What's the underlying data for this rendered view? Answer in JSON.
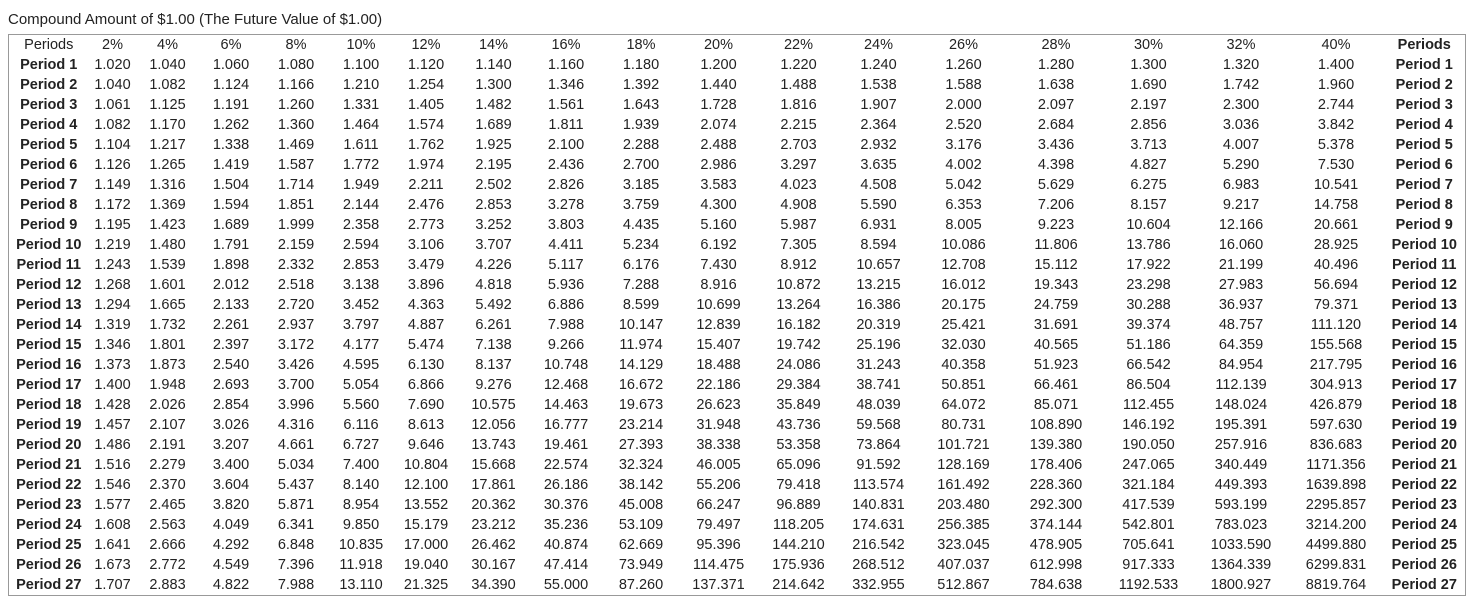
{
  "title": "Compound Amount of $1.00 (The Future Value of $1.00)",
  "table": {
    "header": [
      "Periods",
      "2%",
      "4%",
      "6%",
      "8%",
      "10%",
      "12%",
      "14%",
      "16%",
      "18%",
      "20%",
      "22%",
      "24%",
      "26%",
      "28%",
      "30%",
      "32%",
      "40%",
      "Periods"
    ],
    "rows": [
      [
        "Period 1",
        "1.020",
        "1.040",
        "1.060",
        "1.080",
        "1.100",
        "1.120",
        "1.140",
        "1.160",
        "1.180",
        "1.200",
        "1.220",
        "1.240",
        "1.260",
        "1.280",
        "1.300",
        "1.320",
        "1.400",
        "Period 1"
      ],
      [
        "Period 2",
        "1.040",
        "1.082",
        "1.124",
        "1.166",
        "1.210",
        "1.254",
        "1.300",
        "1.346",
        "1.392",
        "1.440",
        "1.488",
        "1.538",
        "1.588",
        "1.638",
        "1.690",
        "1.742",
        "1.960",
        "Period 2"
      ],
      [
        "Period 3",
        "1.061",
        "1.125",
        "1.191",
        "1.260",
        "1.331",
        "1.405",
        "1.482",
        "1.561",
        "1.643",
        "1.728",
        "1.816",
        "1.907",
        "2.000",
        "2.097",
        "2.197",
        "2.300",
        "2.744",
        "Period 3"
      ],
      [
        "Period 4",
        "1.082",
        "1.170",
        "1.262",
        "1.360",
        "1.464",
        "1.574",
        "1.689",
        "1.811",
        "1.939",
        "2.074",
        "2.215",
        "2.364",
        "2.520",
        "2.684",
        "2.856",
        "3.036",
        "3.842",
        "Period 4"
      ],
      [
        "Period 5",
        "1.104",
        "1.217",
        "1.338",
        "1.469",
        "1.611",
        "1.762",
        "1.925",
        "2.100",
        "2.288",
        "2.488",
        "2.703",
        "2.932",
        "3.176",
        "3.436",
        "3.713",
        "4.007",
        "5.378",
        "Period 5"
      ],
      [
        "Period 6",
        "1.126",
        "1.265",
        "1.419",
        "1.587",
        "1.772",
        "1.974",
        "2.195",
        "2.436",
        "2.700",
        "2.986",
        "3.297",
        "3.635",
        "4.002",
        "4.398",
        "4.827",
        "5.290",
        "7.530",
        "Period 6"
      ],
      [
        "Period 7",
        "1.149",
        "1.316",
        "1.504",
        "1.714",
        "1.949",
        "2.211",
        "2.502",
        "2.826",
        "3.185",
        "3.583",
        "4.023",
        "4.508",
        "5.042",
        "5.629",
        "6.275",
        "6.983",
        "10.541",
        "Period 7"
      ],
      [
        "Period 8",
        "1.172",
        "1.369",
        "1.594",
        "1.851",
        "2.144",
        "2.476",
        "2.853",
        "3.278",
        "3.759",
        "4.300",
        "4.908",
        "5.590",
        "6.353",
        "7.206",
        "8.157",
        "9.217",
        "14.758",
        "Period 8"
      ],
      [
        "Period 9",
        "1.195",
        "1.423",
        "1.689",
        "1.999",
        "2.358",
        "2.773",
        "3.252",
        "3.803",
        "4.435",
        "5.160",
        "5.987",
        "6.931",
        "8.005",
        "9.223",
        "10.604",
        "12.166",
        "20.661",
        "Period 9"
      ],
      [
        "Period 10",
        "1.219",
        "1.480",
        "1.791",
        "2.159",
        "2.594",
        "3.106",
        "3.707",
        "4.411",
        "5.234",
        "6.192",
        "7.305",
        "8.594",
        "10.086",
        "11.806",
        "13.786",
        "16.060",
        "28.925",
        "Period 10"
      ],
      [
        "Period 11",
        "1.243",
        "1.539",
        "1.898",
        "2.332",
        "2.853",
        "3.479",
        "4.226",
        "5.117",
        "6.176",
        "7.430",
        "8.912",
        "10.657",
        "12.708",
        "15.112",
        "17.922",
        "21.199",
        "40.496",
        "Period 11"
      ],
      [
        "Period 12",
        "1.268",
        "1.601",
        "2.012",
        "2.518",
        "3.138",
        "3.896",
        "4.818",
        "5.936",
        "7.288",
        "8.916",
        "10.872",
        "13.215",
        "16.012",
        "19.343",
        "23.298",
        "27.983",
        "56.694",
        "Period 12"
      ],
      [
        "Period 13",
        "1.294",
        "1.665",
        "2.133",
        "2.720",
        "3.452",
        "4.363",
        "5.492",
        "6.886",
        "8.599",
        "10.699",
        "13.264",
        "16.386",
        "20.175",
        "24.759",
        "30.288",
        "36.937",
        "79.371",
        "Period 13"
      ],
      [
        "Period 14",
        "1.319",
        "1.732",
        "2.261",
        "2.937",
        "3.797",
        "4.887",
        "6.261",
        "7.988",
        "10.147",
        "12.839",
        "16.182",
        "20.319",
        "25.421",
        "31.691",
        "39.374",
        "48.757",
        "111.120",
        "Period 14"
      ],
      [
        "Period 15",
        "1.346",
        "1.801",
        "2.397",
        "3.172",
        "4.177",
        "5.474",
        "7.138",
        "9.266",
        "11.974",
        "15.407",
        "19.742",
        "25.196",
        "32.030",
        "40.565",
        "51.186",
        "64.359",
        "155.568",
        "Period 15"
      ],
      [
        "Period 16",
        "1.373",
        "1.873",
        "2.540",
        "3.426",
        "4.595",
        "6.130",
        "8.137",
        "10.748",
        "14.129",
        "18.488",
        "24.086",
        "31.243",
        "40.358",
        "51.923",
        "66.542",
        "84.954",
        "217.795",
        "Period 16"
      ],
      [
        "Period 17",
        "1.400",
        "1.948",
        "2.693",
        "3.700",
        "5.054",
        "6.866",
        "9.276",
        "12.468",
        "16.672",
        "22.186",
        "29.384",
        "38.741",
        "50.851",
        "66.461",
        "86.504",
        "112.139",
        "304.913",
        "Period 17"
      ],
      [
        "Period 18",
        "1.428",
        "2.026",
        "2.854",
        "3.996",
        "5.560",
        "7.690",
        "10.575",
        "14.463",
        "19.673",
        "26.623",
        "35.849",
        "48.039",
        "64.072",
        "85.071",
        "112.455",
        "148.024",
        "426.879",
        "Period 18"
      ],
      [
        "Period 19",
        "1.457",
        "2.107",
        "3.026",
        "4.316",
        "6.116",
        "8.613",
        "12.056",
        "16.777",
        "23.214",
        "31.948",
        "43.736",
        "59.568",
        "80.731",
        "108.890",
        "146.192",
        "195.391",
        "597.630",
        "Period 19"
      ],
      [
        "Period 20",
        "1.486",
        "2.191",
        "3.207",
        "4.661",
        "6.727",
        "9.646",
        "13.743",
        "19.461",
        "27.393",
        "38.338",
        "53.358",
        "73.864",
        "101.721",
        "139.380",
        "190.050",
        "257.916",
        "836.683",
        "Period 20"
      ],
      [
        "Period 21",
        "1.516",
        "2.279",
        "3.400",
        "5.034",
        "7.400",
        "10.804",
        "15.668",
        "22.574",
        "32.324",
        "46.005",
        "65.096",
        "91.592",
        "128.169",
        "178.406",
        "247.065",
        "340.449",
        "1171.356",
        "Period 21"
      ],
      [
        "Period 22",
        "1.546",
        "2.370",
        "3.604",
        "5.437",
        "8.140",
        "12.100",
        "17.861",
        "26.186",
        "38.142",
        "55.206",
        "79.418",
        "113.574",
        "161.492",
        "228.360",
        "321.184",
        "449.393",
        "1639.898",
        "Period 22"
      ],
      [
        "Period 23",
        "1.577",
        "2.465",
        "3.820",
        "5.871",
        "8.954",
        "13.552",
        "20.362",
        "30.376",
        "45.008",
        "66.247",
        "96.889",
        "140.831",
        "203.480",
        "292.300",
        "417.539",
        "593.199",
        "2295.857",
        "Period 23"
      ],
      [
        "Period 24",
        "1.608",
        "2.563",
        "4.049",
        "6.341",
        "9.850",
        "15.179",
        "23.212",
        "35.236",
        "53.109",
        "79.497",
        "118.205",
        "174.631",
        "256.385",
        "374.144",
        "542.801",
        "783.023",
        "3214.200",
        "Period 24"
      ],
      [
        "Period 25",
        "1.641",
        "2.666",
        "4.292",
        "6.848",
        "10.835",
        "17.000",
        "26.462",
        "40.874",
        "62.669",
        "95.396",
        "144.210",
        "216.542",
        "323.045",
        "478.905",
        "705.641",
        "1033.590",
        "4499.880",
        "Period 25"
      ],
      [
        "Period 26",
        "1.673",
        "2.772",
        "4.549",
        "7.396",
        "11.918",
        "19.040",
        "30.167",
        "47.414",
        "73.949",
        "114.475",
        "175.936",
        "268.512",
        "407.037",
        "612.998",
        "917.333",
        "1364.339",
        "6299.831",
        "Period 26"
      ],
      [
        "Period 27",
        "1.707",
        "2.883",
        "4.822",
        "7.988",
        "13.110",
        "21.325",
        "34.390",
        "55.000",
        "87.260",
        "137.371",
        "214.642",
        "332.955",
        "512.867",
        "784.638",
        "1192.533",
        "1800.927",
        "8819.764",
        "Period 27"
      ]
    ]
  }
}
